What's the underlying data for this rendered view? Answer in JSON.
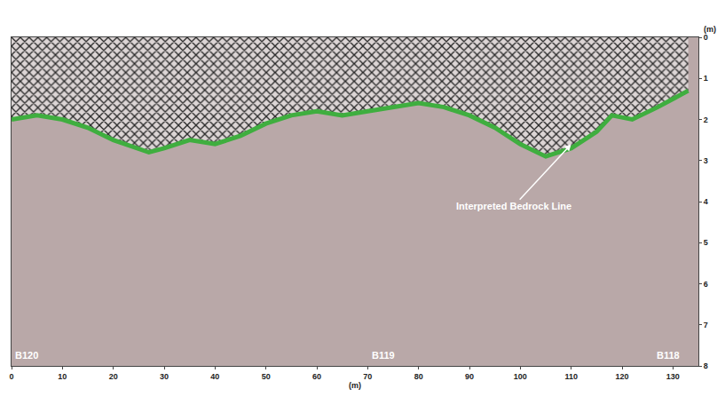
{
  "chart_data": {
    "type": "line",
    "x": [
      0,
      5,
      10,
      15,
      20,
      27,
      30,
      35,
      40,
      45,
      50,
      55,
      60,
      65,
      70,
      75,
      80,
      85,
      90,
      95,
      100,
      105,
      110,
      115,
      118,
      122,
      127,
      133
    ],
    "values": [
      2.0,
      1.9,
      2.0,
      2.2,
      2.5,
      2.8,
      2.7,
      2.5,
      2.6,
      2.4,
      2.1,
      1.9,
      1.8,
      1.9,
      1.8,
      1.7,
      1.6,
      1.7,
      1.9,
      2.2,
      2.6,
      2.9,
      2.7,
      2.3,
      1.9,
      2.0,
      1.7,
      1.3
    ],
    "color": "#3fae3f",
    "x_label": "(m)",
    "y_label": "(m)",
    "xlim": [
      0,
      135
    ],
    "xticks": [
      0,
      10,
      20,
      30,
      40,
      50,
      60,
      70,
      80,
      90,
      100,
      110,
      120,
      130
    ],
    "ylim": [
      8,
      0
    ],
    "yticks": [
      0,
      1,
      2,
      3,
      4,
      5,
      6,
      7,
      8
    ],
    "grid": false,
    "annotations": [
      {
        "text": "Interpreted Bedrock Line",
        "x": 110,
        "y": 2.6,
        "arrow": true
      },
      {
        "text": "B120",
        "x": 3,
        "y": 7.75,
        "arrow": false
      },
      {
        "text": "B119",
        "x": 73,
        "y": 7.75,
        "arrow": false
      },
      {
        "text": "B118",
        "x": 129,
        "y": 7.75,
        "arrow": false
      }
    ]
  }
}
